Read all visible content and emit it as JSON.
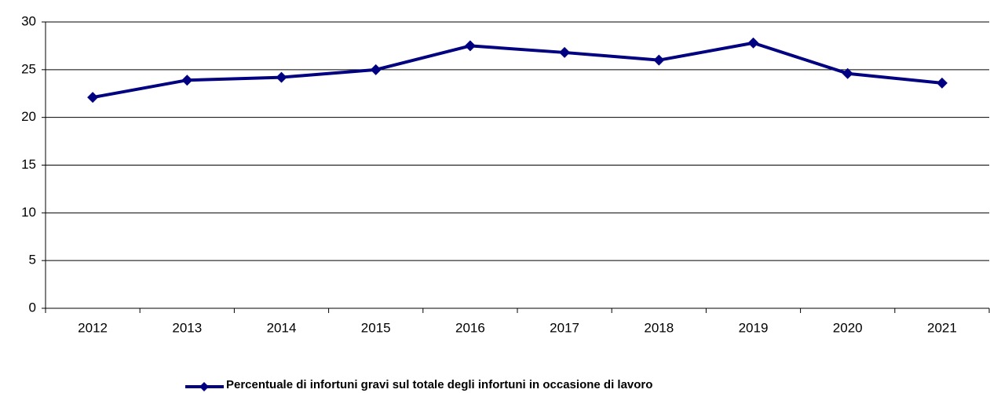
{
  "chart_data": {
    "type": "line",
    "categories": [
      "2012",
      "2013",
      "2014",
      "2015",
      "2016",
      "2017",
      "2018",
      "2019",
      "2020",
      "2021"
    ],
    "series": [
      {
        "name": "Percentuale di infortuni gravi sul totale degli infortuni in occasione di lavoro",
        "color": "#000080",
        "values": [
          22.1,
          23.9,
          24.2,
          25.0,
          27.5,
          26.8,
          26.0,
          27.8,
          24.6,
          23.6
        ]
      }
    ],
    "ylim": [
      0,
      30
    ],
    "yticks": [
      0,
      5,
      10,
      15,
      20,
      25,
      30
    ],
    "grid": true,
    "legend": "bottom"
  }
}
